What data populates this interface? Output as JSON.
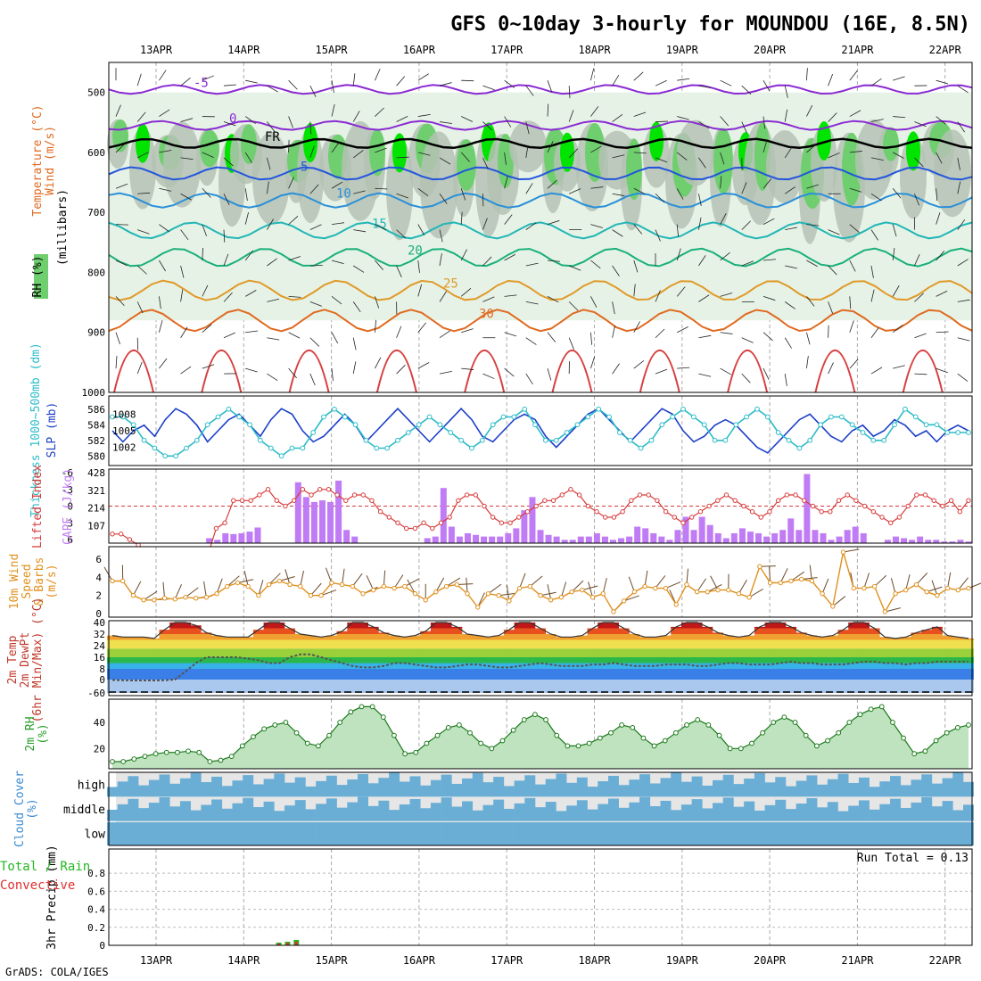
{
  "title": "GFS 0~10day 3-hourly for MOUNDOU (16E, 8.5N)",
  "credit": "GrADS: COLA/IGES",
  "dates": [
    "13APR",
    "14APR",
    "15APR",
    "16APR",
    "17APR",
    "18APR",
    "19APR",
    "20APR",
    "21APR",
    "22APR"
  ],
  "colors": {
    "rh_dark": "#00e400",
    "rh_mid": "#6fcf6f",
    "rh_gray": "#b4c2b4",
    "rh_light": "#e6f2e6",
    "slp": "#1c3fc9",
    "thickness": "#2cbcc8",
    "cape": "#c07cf5",
    "lifted": "#d83a3a",
    "wind": "#e0901e",
    "barb": "#6b4a2a",
    "rh2m": "#2a9e2a",
    "cloud": "#6aaed6",
    "cloud_bg": "#e6e6e6",
    "precip_total": "#22b822",
    "precip_conv": "#e03030"
  },
  "chart_data": [
    {
      "type": "heatmap",
      "panel": "upper-air",
      "ylabels": [
        "Temperature (°C)",
        "Wind (m/s)",
        "RH (%)",
        "(millibars)"
      ],
      "yticks": [
        500,
        600,
        700,
        800,
        900,
        1000
      ],
      "ylim": [
        1000,
        450
      ],
      "temperature_isotherms": [
        {
          "label": "-5",
          "level_mb": 495
        },
        {
          "label": "0",
          "level_mb": 555
        },
        {
          "label": "FR",
          "level_mb": 585
        },
        {
          "label": "5",
          "level_mb": 635
        },
        {
          "label": "10",
          "level_mb": 680
        },
        {
          "label": "15",
          "level_mb": 730
        },
        {
          "label": "20",
          "level_mb": 775
        },
        {
          "label": "25",
          "level_mb": 830
        },
        {
          "label": "30",
          "level_mb": 880
        }
      ]
    },
    {
      "type": "line",
      "panel": "slp-thickness",
      "series": [
        {
          "name": "SLP (mb)",
          "ticks": [
            1002,
            1005,
            1008
          ],
          "values": [
            1005,
            1003,
            1005,
            1006,
            1004,
            1007,
            1009,
            1008,
            1006,
            1003,
            1005,
            1007,
            1008,
            1006,
            1004,
            1007,
            1009,
            1008,
            1005,
            1003,
            1004,
            1006,
            1008,
            1006,
            1003,
            1005,
            1007,
            1009,
            1007,
            1005,
            1003,
            1005,
            1007,
            1009,
            1007,
            1004,
            1003,
            1005,
            1007,
            1008,
            1007,
            1004,
            1002,
            1004,
            1006,
            1008,
            1009,
            1007,
            1005,
            1003,
            1005,
            1007,
            1009,
            1008,
            1005,
            1003,
            1004,
            1006,
            1007,
            1006,
            1004,
            1002,
            1001,
            1003,
            1005,
            1007,
            1008,
            1006,
            1004,
            1003,
            1005,
            1006,
            1004,
            1005,
            1007,
            1006,
            1004,
            1005,
            1003,
            1005,
            1006,
            1005
          ]
        },
        {
          "name": "Thickness 1000~500mb (dm)",
          "ticks": [
            580,
            582,
            584,
            586
          ],
          "values": [
            585,
            585,
            584,
            582,
            581,
            580,
            580,
            581,
            582,
            584,
            585,
            586,
            585,
            584,
            582,
            581,
            580,
            581,
            581,
            583,
            585,
            586,
            585,
            584,
            582,
            581,
            581,
            582,
            583,
            584,
            585,
            584,
            583,
            582,
            581,
            582,
            584,
            585,
            585,
            586,
            584,
            582,
            582,
            583,
            584,
            585,
            586,
            585,
            583,
            582,
            581,
            582,
            584,
            585,
            586,
            585,
            584,
            582,
            582,
            584,
            585,
            586,
            585,
            583,
            582,
            581,
            582,
            584,
            585,
            585,
            584,
            583,
            582,
            582,
            584,
            586,
            585,
            584,
            584,
            583,
            583,
            583
          ]
        }
      ]
    },
    {
      "type": "bar",
      "panel": "cape-lifted-index",
      "series": [
        {
          "name": "CAPE (J/kg)",
          "ticks": [
            107,
            214,
            321,
            428
          ],
          "values": [
            0,
            0,
            0,
            0,
            0,
            0,
            0,
            0,
            0,
            0,
            0,
            0,
            30,
            20,
            60,
            55,
            60,
            70,
            95,
            0,
            0,
            0,
            0,
            370,
            280,
            250,
            260,
            250,
            380,
            80,
            40,
            0,
            0,
            0,
            0,
            0,
            0,
            0,
            0,
            30,
            40,
            335,
            100,
            40,
            60,
            50,
            40,
            40,
            40,
            60,
            90,
            200,
            280,
            80,
            50,
            40,
            20,
            20,
            40,
            40,
            60,
            40,
            20,
            30,
            40,
            100,
            90,
            60,
            40,
            20,
            80,
            160,
            80,
            160,
            110,
            60,
            30,
            60,
            90,
            70,
            60,
            40,
            60,
            80,
            150,
            80,
            420,
            80,
            60,
            20,
            40,
            80,
            100,
            60,
            0,
            0,
            20,
            40,
            30,
            20,
            40,
            20,
            20,
            10,
            10,
            20,
            10
          ]
        },
        {
          "name": "Lifted Index",
          "ticks": [
            -6,
            -3,
            0,
            3,
            6
          ],
          "values": [
            5,
            5,
            6,
            7,
            8,
            9,
            9,
            9,
            9,
            9,
            9,
            9,
            4,
            3,
            -1,
            -1,
            -1,
            -2,
            -3,
            -1,
            0,
            -1,
            -3,
            -2,
            -3,
            -3,
            -2,
            -1,
            -2,
            -2,
            -1,
            1,
            2,
            3,
            4,
            4,
            3,
            4,
            3,
            2,
            -1,
            -2,
            -2,
            0,
            2,
            3,
            3,
            2,
            1,
            0,
            -1,
            -1,
            -2,
            -3,
            -2,
            0,
            1,
            2,
            2,
            1,
            -1,
            -2,
            -2,
            -1,
            1,
            2,
            3,
            2,
            1,
            0,
            -1,
            -2,
            -1,
            0,
            1,
            2,
            1,
            -1,
            -2,
            -2,
            -1,
            0,
            1,
            1,
            -1,
            -2,
            -1,
            0,
            1,
            2,
            3,
            2,
            0,
            -2,
            -2,
            -1,
            0,
            -1,
            1,
            -1
          ]
        }
      ]
    },
    {
      "type": "line",
      "panel": "wind-10m",
      "ylabels": [
        "10m Wind",
        "Speed",
        "& Barbs",
        "(m/s)"
      ],
      "yticks": [
        0,
        2,
        4,
        6
      ],
      "values": [
        3.6,
        3.6,
        2.0,
        1.5,
        1.5,
        1.7,
        1.6,
        1.8,
        1.7,
        1.8,
        2.2,
        3.0,
        3.4,
        3.0,
        2.0,
        3.2,
        3.6,
        3.2,
        3.0,
        2.0,
        2.0,
        3.4,
        3.2,
        3.0,
        2.2,
        2.6,
        3.0,
        2.8,
        3.0,
        2.2,
        1.5,
        2.4,
        3.0,
        3.2,
        2.2,
        0.7,
        2.2,
        2.0,
        1.4,
        2.8,
        3.0,
        2.0,
        1.5,
        1.8,
        2.4,
        2.6,
        1.8,
        2.2,
        0.2,
        1.4,
        2.4,
        3.0,
        2.8,
        2.8,
        1.0,
        3.2,
        2.4,
        2.4,
        2.6,
        2.6,
        2.2,
        1.8,
        5.2,
        3.4,
        3.4,
        3.6,
        3.8,
        3.6,
        2.2,
        0.8,
        6.8,
        2.8,
        2.8,
        3.0,
        0.2,
        2.2,
        2.6,
        3.2,
        2.4,
        2.0,
        2.8,
        2.6,
        2.8
      ]
    },
    {
      "type": "area",
      "panel": "temp-2m",
      "ylabels": [
        "2m Temp",
        "2m DewPt",
        "(6hr Min/Max) (°C)"
      ],
      "yticks": [
        -60,
        0,
        8,
        16,
        24,
        32,
        40
      ],
      "series": [
        {
          "name": "2m Temp",
          "values": [
            31,
            30,
            30,
            30,
            29,
            35,
            40,
            40,
            38,
            33,
            31,
            30,
            30,
            30,
            35,
            40,
            40,
            36,
            32,
            31,
            30,
            31,
            34,
            40,
            41,
            37,
            33,
            31,
            30,
            31,
            34,
            40,
            42,
            37,
            32,
            31,
            30,
            31,
            35,
            40,
            41,
            36,
            32,
            30,
            30,
            31,
            36,
            40,
            41,
            36,
            32,
            30,
            30,
            31,
            37,
            41,
            41,
            37,
            33,
            31,
            30,
            31,
            37,
            41,
            41,
            37,
            33,
            31,
            30,
            31,
            35,
            41,
            40,
            36,
            30,
            29,
            30,
            33,
            35,
            37,
            31,
            30,
            29
          ]
        },
        {
          "name": "2m DewPt",
          "values": [
            -2,
            -3,
            -4,
            -4,
            -4,
            -3,
            0,
            6,
            12,
            16,
            16,
            16,
            16,
            15,
            14,
            12,
            12,
            16,
            18,
            18,
            16,
            14,
            12,
            10,
            9,
            9,
            10,
            12,
            12,
            11,
            10,
            9,
            9,
            10,
            11,
            11,
            10,
            9,
            9,
            10,
            11,
            12,
            11,
            10,
            10,
            10,
            11,
            11,
            12,
            11,
            10,
            10,
            10,
            11,
            11,
            11,
            10,
            10,
            11,
            12,
            12,
            11,
            11,
            11,
            12,
            13,
            12,
            12,
            11,
            11,
            11,
            12,
            13,
            13,
            12,
            12,
            11,
            12,
            12,
            13,
            13,
            13,
            13
          ]
        }
      ]
    },
    {
      "type": "area",
      "panel": "rh-2m",
      "ylabels": [
        "2m RH",
        "(%)"
      ],
      "yticks": [
        20,
        40
      ],
      "values": [
        10,
        10,
        12,
        14,
        16,
        17,
        17,
        18,
        17,
        10,
        11,
        14,
        22,
        29,
        35,
        38,
        40,
        32,
        24,
        22,
        30,
        40,
        48,
        52,
        52,
        44,
        30,
        16,
        17,
        24,
        30,
        36,
        38,
        32,
        24,
        20,
        26,
        34,
        42,
        46,
        42,
        30,
        22,
        22,
        24,
        28,
        32,
        38,
        36,
        28,
        22,
        26,
        32,
        38,
        42,
        38,
        30,
        20,
        20,
        24,
        32,
        40,
        44,
        40,
        30,
        22,
        26,
        32,
        40,
        46,
        50,
        52,
        40,
        28,
        16,
        18,
        26,
        32,
        36,
        38
      ]
    },
    {
      "type": "heatmap",
      "panel": "cloud-cover",
      "ylabels": [
        "Cloud Cover",
        "(%)"
      ],
      "rows": [
        "high",
        "middle",
        "low"
      ]
    },
    {
      "type": "bar",
      "panel": "precip-3hr",
      "ylabels": [
        "3hr Precip (mm)",
        "Total / Rain",
        "Convective"
      ],
      "yticks": [
        0,
        0.2,
        0.4,
        0.6,
        0.8
      ],
      "ylim": [
        0,
        1
      ],
      "run_total": "Run Total = 0.13",
      "values": [
        {
          "date_index": 1.4,
          "total": 0.03
        },
        {
          "date_index": 1.5,
          "total": 0.04
        },
        {
          "date_index": 1.6,
          "total": 0.06
        }
      ]
    }
  ]
}
